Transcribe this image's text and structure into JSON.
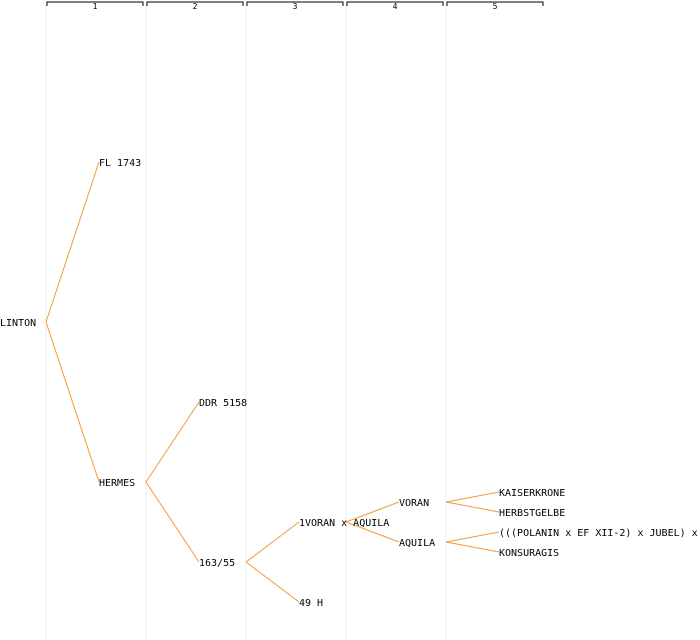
{
  "generations": [
    "1",
    "2",
    "3",
    "4",
    "5"
  ],
  "colors": {
    "edge": "#f29a3c",
    "grid": "#eeeeee",
    "text": "#000000"
  },
  "tree": {
    "name": "LINTON",
    "children": [
      {
        "name": "FL 1743",
        "children": []
      },
      {
        "name": "HERMES",
        "children": [
          {
            "name": "DDR 5158",
            "children": []
          },
          {
            "name": "163/55",
            "children": [
              {
                "name": "1VORAN x AQUILA",
                "children": [
                  {
                    "name": "VORAN",
                    "children": [
                      {
                        "name": "KAISERKRONE",
                        "children": []
                      },
                      {
                        "name": "HERBSTGELBE",
                        "children": []
                      }
                    ]
                  },
                  {
                    "name": "AQUILA",
                    "children": [
                      {
                        "name": "(((POLANIN x EF XII-2) x JUBEL) x",
                        "children": []
                      },
                      {
                        "name": "KONSURAGIS",
                        "children": []
                      }
                    ]
                  }
                ]
              },
              {
                "name": "49 H",
                "children": []
              }
            ]
          }
        ]
      }
    ]
  }
}
